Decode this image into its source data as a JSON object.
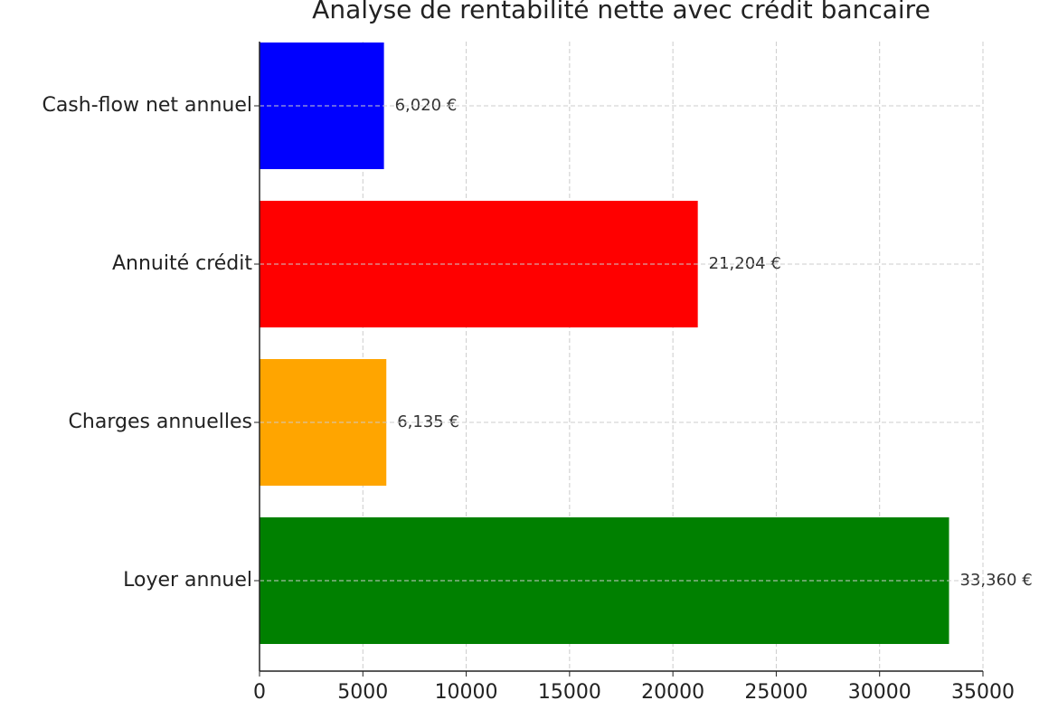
{
  "chart_data": {
    "type": "barh",
    "title": "Analyse de rentabilité nette avec crédit bancaire",
    "categories": [
      "Loyer annuel",
      "Charges annuelles",
      "Annuité crédit",
      "Cash-flow net annuel"
    ],
    "values": [
      33360,
      6135,
      21204,
      6020
    ],
    "value_labels": [
      "33,360 €",
      "6,135 €",
      "21,204 €",
      "6,020 €"
    ],
    "colors": [
      "#008000",
      "#ffa500",
      "#ff0000",
      "#0000ff"
    ],
    "xlim": [
      0,
      35000
    ],
    "xticks": [
      0,
      5000,
      10000,
      15000,
      20000,
      25000,
      30000,
      35000
    ],
    "grid": true
  }
}
